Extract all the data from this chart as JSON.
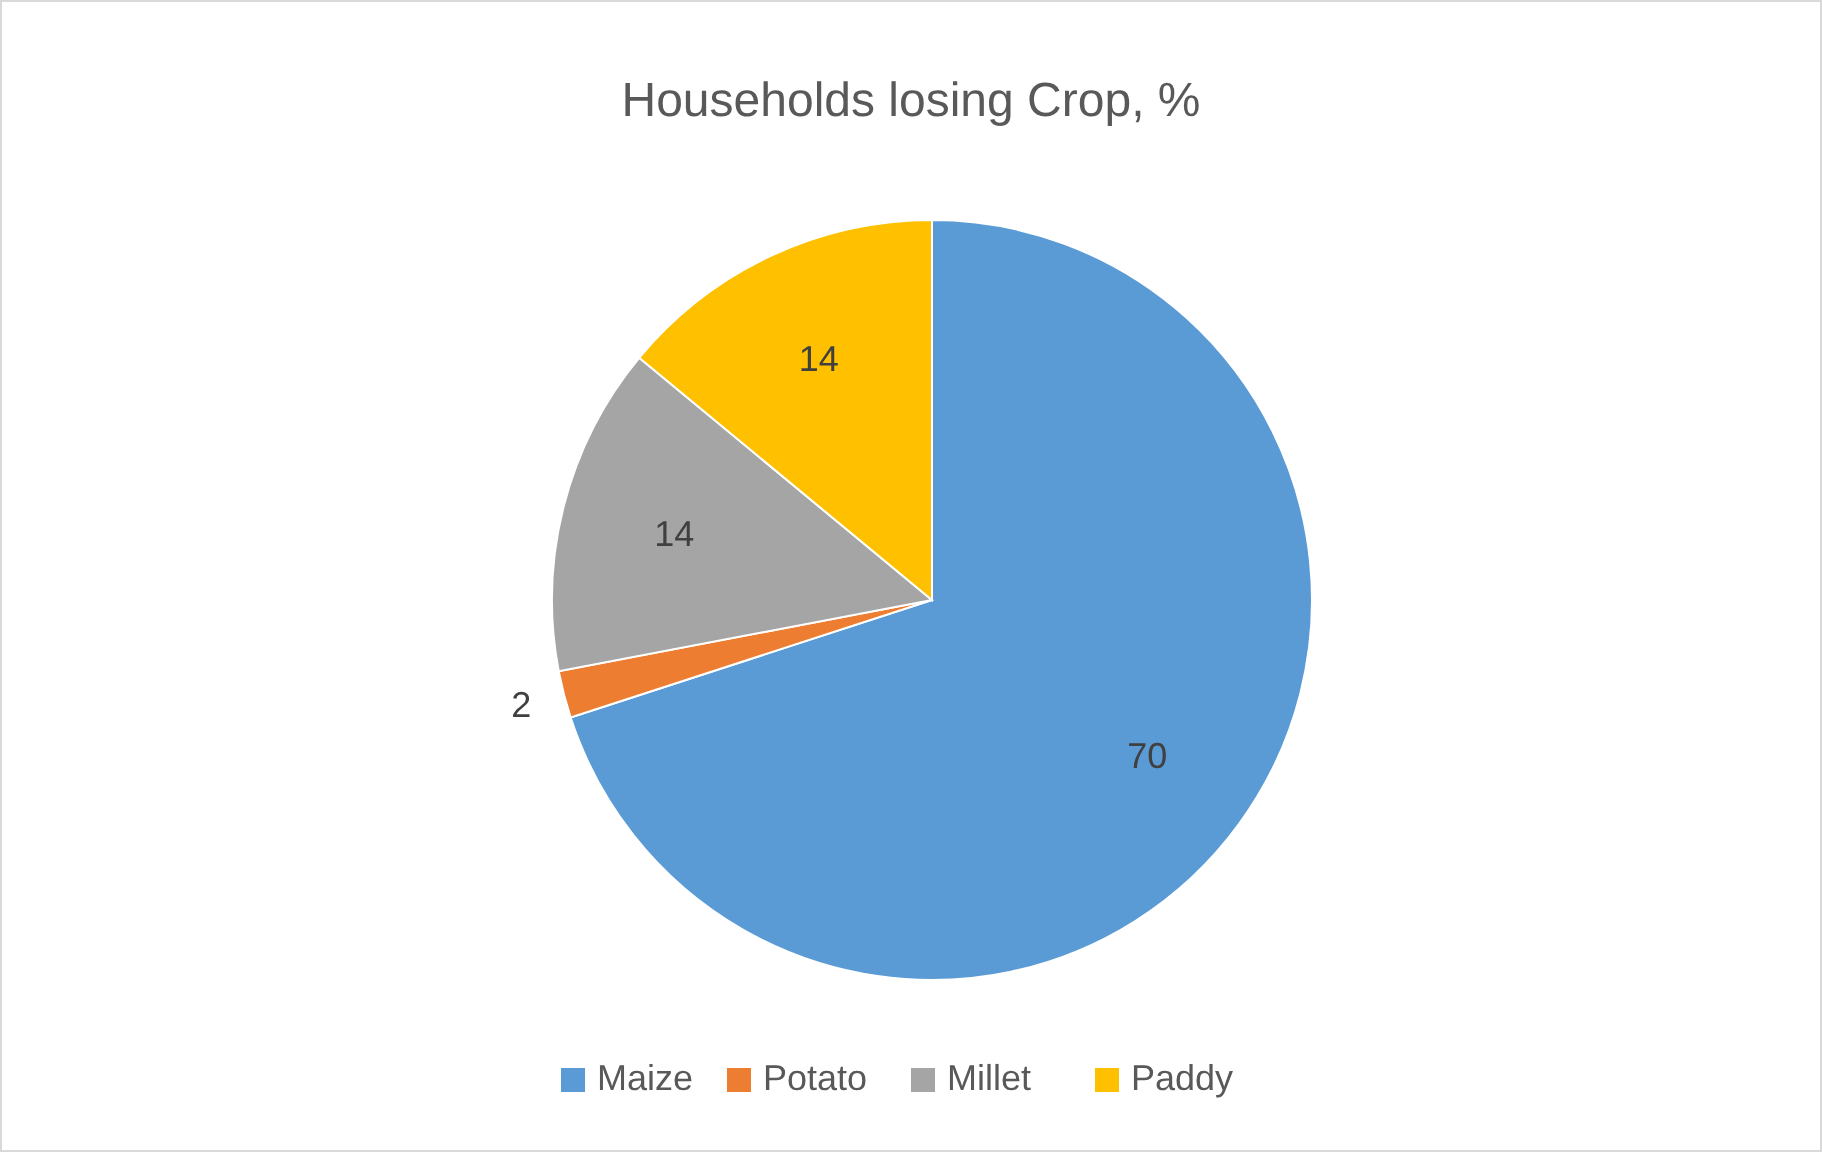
{
  "chart_data": {
    "type": "pie",
    "title": "Households losing Crop, %",
    "categories": [
      "Maize",
      "Potato",
      "Millet",
      "Paddy"
    ],
    "values": [
      70,
      2,
      14,
      14
    ],
    "colors": [
      "#5b9bd5",
      "#ed7d31",
      "#a5a5a5",
      "#ffc000"
    ],
    "data_labels": true,
    "legend": "bottom"
  }
}
